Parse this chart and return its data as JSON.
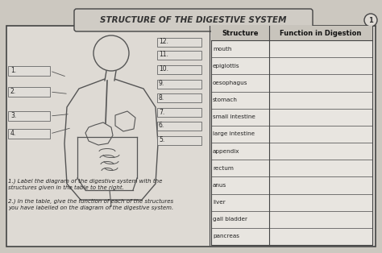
{
  "title": "STRUCTURE OF THE DIGESTIVE SYSTEM",
  "page_number": "1",
  "structures": [
    "mouth",
    "epiglottis",
    "oesophagus",
    "stomach",
    "small intestine",
    "large intestine",
    "appendix",
    "rectum",
    "anus",
    "liver",
    "gall bladder",
    "pancreas"
  ],
  "col1_header": "Structure",
  "col2_header": "Function in Digestion",
  "instruction1": "1.) Label the diagram of the digestive system with the",
  "instruction1b": "structures given in the table to the right.",
  "instruction2": "2.) In the table, give the function of each of the structures",
  "instruction2b": "you have labelled on the diagram of the digestive system.",
  "bg_color": "#ccc8c0",
  "worksheet_bg": "#dedad4",
  "table_bg": "#e8e5e0",
  "border_color": "#444444",
  "title_bg": "#d0ccc5",
  "line_color": "#555555",
  "box_fill": "#e0ddd8",
  "label_boxes_left": [
    "1.",
    "2.",
    "3.",
    "4."
  ],
  "label_boxes_right": [
    "12.",
    "11.",
    "10.",
    "9.",
    "8.",
    "7.",
    "6.",
    "5."
  ]
}
